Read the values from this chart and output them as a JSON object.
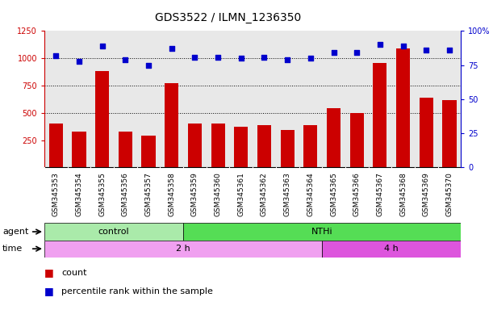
{
  "title": "GDS3522 / ILMN_1236350",
  "samples": [
    "GSM345353",
    "GSM345354",
    "GSM345355",
    "GSM345356",
    "GSM345357",
    "GSM345358",
    "GSM345359",
    "GSM345360",
    "GSM345361",
    "GSM345362",
    "GSM345363",
    "GSM345364",
    "GSM345365",
    "GSM345366",
    "GSM345367",
    "GSM345368",
    "GSM345369",
    "GSM345370"
  ],
  "counts": [
    400,
    325,
    880,
    330,
    290,
    775,
    400,
    400,
    370,
    390,
    345,
    385,
    545,
    500,
    960,
    1090,
    640,
    620
  ],
  "percentiles": [
    82,
    78,
    89,
    79,
    75,
    87,
    81,
    81,
    80,
    81,
    79,
    80,
    84,
    84,
    90,
    89,
    86,
    86
  ],
  "agent_groups": [
    {
      "label": "control",
      "start": 0,
      "end": 6,
      "color": "#AAEAAA"
    },
    {
      "label": "NTHi",
      "start": 6,
      "end": 18,
      "color": "#55DD55"
    }
  ],
  "time_groups": [
    {
      "label": "2 h",
      "start": 0,
      "end": 12,
      "color": "#F0A0F0"
    },
    {
      "label": "4 h",
      "start": 12,
      "end": 18,
      "color": "#DD55DD"
    }
  ],
  "bar_color": "#CC0000",
  "scatter_color": "#0000CC",
  "ylim_left": [
    0,
    1250
  ],
  "ylim_right": [
    0,
    100
  ],
  "yticks_left": [
    250,
    500,
    750,
    1000,
    1250
  ],
  "yticks_right": [
    0,
    25,
    50,
    75,
    100
  ],
  "grid_values": [
    500,
    750,
    1000
  ],
  "bg_color": "#E8E8E8",
  "xtick_bg": "#D0D0D0",
  "title_color": "#000000",
  "left_axis_color": "#CC0000",
  "right_axis_color": "#0000CC"
}
